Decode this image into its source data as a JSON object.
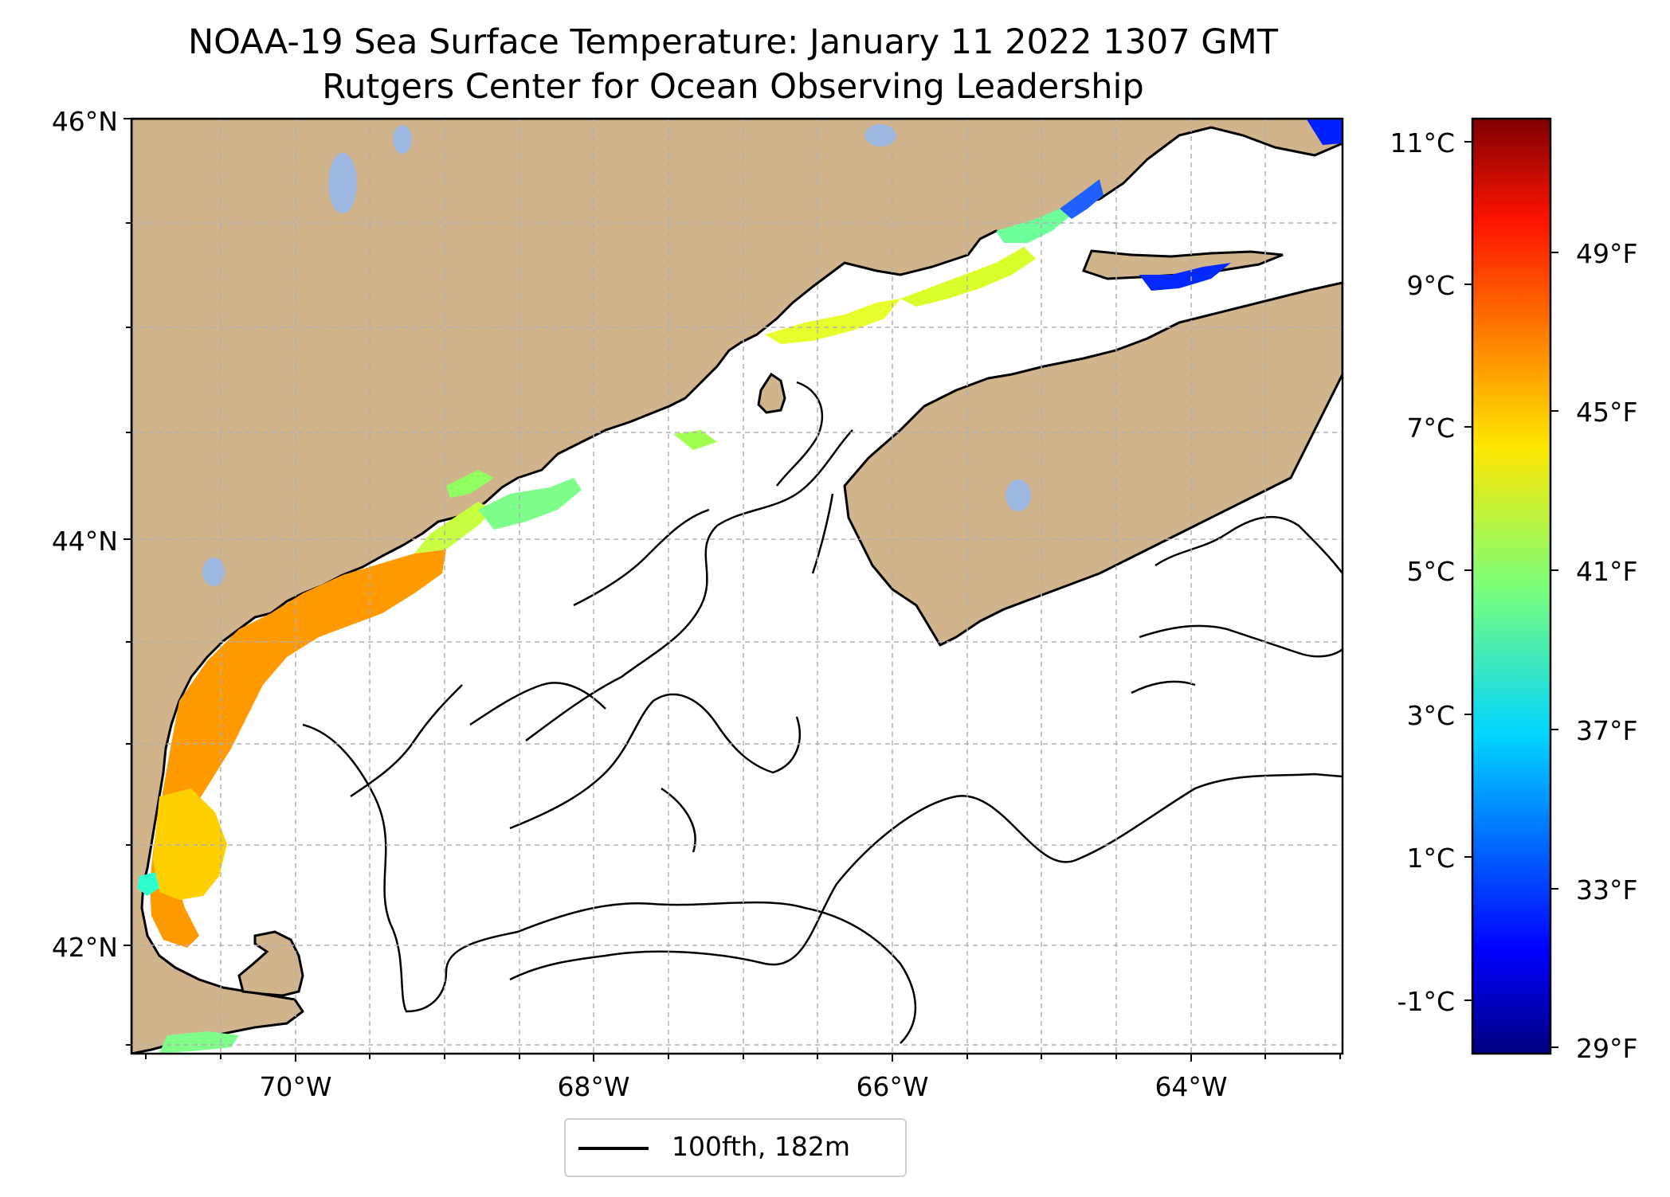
{
  "title_line1": "NOAA-19 Sea Surface Temperature: January 11 2022 1307 GMT",
  "title_line2": "Rutgers Center for Ocean Observing Leadership",
  "map": {
    "lon_range": [
      -71.2,
      -63.1
    ],
    "lat_range": [
      41.5,
      46.0
    ],
    "lat_ticks": [
      {
        "value": 46,
        "label": "46°N"
      },
      {
        "value": 44,
        "label": "44°N"
      },
      {
        "value": 42,
        "label": "42°N"
      }
    ],
    "lon_ticks": [
      {
        "value": -70,
        "label": "70°W"
      },
      {
        "value": -68,
        "label": "68°W"
      },
      {
        "value": -66,
        "label": "66°W"
      },
      {
        "value": -64,
        "label": "64°W"
      }
    ],
    "gridlines": true,
    "colors": {
      "land": "#d2b48c",
      "lakes": "#9db9e1",
      "ocean": "#ffffff",
      "coastline": "#000000",
      "grid": "#b0b0b0"
    }
  },
  "colorbar": {
    "colormap": "jet",
    "celsius_ticks": [
      {
        "value": 11,
        "label": "11°C"
      },
      {
        "value": 9,
        "label": "9°C"
      },
      {
        "value": 7,
        "label": "7°C"
      },
      {
        "value": 5,
        "label": "5°C"
      },
      {
        "value": 3,
        "label": "3°C"
      },
      {
        "value": 1,
        "label": "1°C"
      },
      {
        "value": -1,
        "label": "-1°C"
      }
    ],
    "fahrenheit_ticks": [
      {
        "value": 49,
        "label": "49°F"
      },
      {
        "value": 45,
        "label": "45°F"
      },
      {
        "value": 41,
        "label": "41°F"
      },
      {
        "value": 37,
        "label": "37°F"
      },
      {
        "value": 33,
        "label": "33°F"
      },
      {
        "value": 29,
        "label": "29°F"
      }
    ],
    "range_celsius": [
      -1.67,
      11.3
    ]
  },
  "legend": {
    "label": "100fth, 182m",
    "placement": "bottom-center"
  }
}
